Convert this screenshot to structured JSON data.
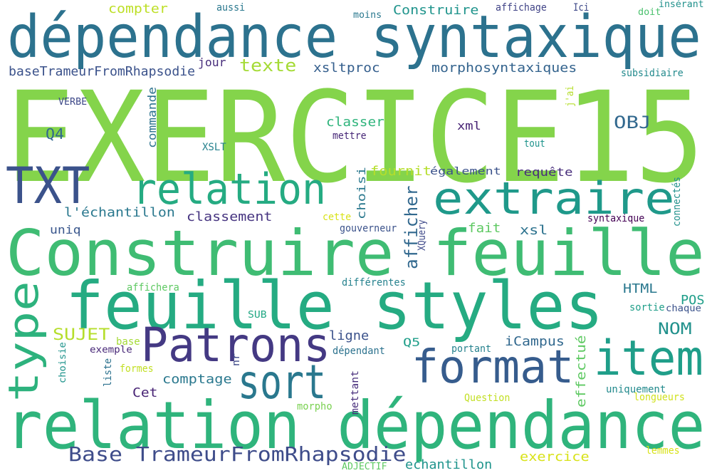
{
  "words": [
    {
      "id": "exercice15",
      "text": "EXERCICE15",
      "color": "#84d44b"
    },
    {
      "id": "dependance-syntaxique",
      "text": "dépendance syntaxique",
      "color": "#2c728e"
    },
    {
      "id": "construire-feuille",
      "text": "Construire feuille",
      "color": "#3fbc73"
    },
    {
      "id": "feuille-styles",
      "text": "feuille styles",
      "color": "#25ab82"
    },
    {
      "id": "relation-dependance",
      "text": "relation dépendance",
      "color": "#2fb47c"
    },
    {
      "id": "txt",
      "text": "TXT",
      "color": "#3b528b"
    },
    {
      "id": "relation",
      "text": "relation",
      "color": "#25ab82"
    },
    {
      "id": "extraire",
      "text": "extraire",
      "color": "#1f998a"
    },
    {
      "id": "patrons",
      "text": "Patrons",
      "color": "#443983"
    },
    {
      "id": "sort",
      "text": "sort",
      "color": "#2a788e"
    },
    {
      "id": "format",
      "text": "format",
      "color": "#365c8d"
    },
    {
      "id": "item",
      "text": "item",
      "color": "#1f9e89"
    },
    {
      "id": "type",
      "text": "type",
      "color": "#2db27d"
    },
    {
      "id": "base-trameur",
      "text": "Base TrameurFromRhapsodie",
      "color": "#3e4c8a"
    },
    {
      "id": "compter",
      "text": "compter",
      "color": "#bddf26"
    },
    {
      "id": "aussi",
      "text": "aussi",
      "color": "#2a788e"
    },
    {
      "id": "moins",
      "text": "moins",
      "color": "#2a788e"
    },
    {
      "id": "construire",
      "text": "Construire",
      "color": "#1f948c"
    },
    {
      "id": "affichage",
      "text": "affichage",
      "color": "#414487"
    },
    {
      "id": "ici",
      "text": "Ici",
      "color": "#3e4989"
    },
    {
      "id": "doit",
      "text": "doit",
      "color": "#4ac16d"
    },
    {
      "id": "inserant",
      "text": "insérant",
      "color": "#21918c"
    },
    {
      "id": "basetrameur",
      "text": "baseTrameurFromRhapsodie",
      "color": "#3b528b"
    },
    {
      "id": "jour",
      "text": "jour",
      "color": "#472d7b"
    },
    {
      "id": "texte",
      "text": "texte",
      "color": "#a5db36"
    },
    {
      "id": "xsltproc",
      "text": "xsltproc",
      "color": "#355f8d"
    },
    {
      "id": "morphosyntaxiques",
      "text": "morphosyntaxiques",
      "color": "#33638d"
    },
    {
      "id": "subsidiaire",
      "text": "subsidiaire",
      "color": "#238a8d"
    },
    {
      "id": "verbe",
      "text": "VERBE",
      "color": "#3e4989"
    },
    {
      "id": "commande",
      "text": "commande",
      "color": "#2c728e"
    },
    {
      "id": "jai",
      "text": "j'ai",
      "color": "#b5de2b"
    },
    {
      "id": "q4",
      "text": "Q4",
      "color": "#31688e"
    },
    {
      "id": "classer",
      "text": "classer",
      "color": "#2fb47c"
    },
    {
      "id": "xml",
      "text": "xml",
      "color": "#482475"
    },
    {
      "id": "obj",
      "text": "OBJ",
      "color": "#31688e"
    },
    {
      "id": "mettre",
      "text": "mettre",
      "color": "#482878"
    },
    {
      "id": "xslt",
      "text": "XSLT",
      "color": "#26828e"
    },
    {
      "id": "tout",
      "text": "tout",
      "color": "#1f948c"
    },
    {
      "id": "fournit",
      "text": "fournit",
      "color": "#b5de2b"
    },
    {
      "id": "choisi",
      "text": "choisi",
      "color": "#2a788e"
    },
    {
      "id": "egalement",
      "text": "également",
      "color": "#3b528b"
    },
    {
      "id": "requete",
      "text": "requête",
      "color": "#472d7b"
    },
    {
      "id": "connectes",
      "text": "connectés",
      "color": "#21918c"
    },
    {
      "id": "lechantillon",
      "text": "l'échantillon",
      "color": "#2a788e"
    },
    {
      "id": "classement",
      "text": "classement",
      "color": "#463480"
    },
    {
      "id": "afficher",
      "text": "afficher",
      "color": "#31688e"
    },
    {
      "id": "cette",
      "text": "cette",
      "color": "#d8e219"
    },
    {
      "id": "xquery",
      "text": "XQuery",
      "color": "#3e4989"
    },
    {
      "id": "gouverneur",
      "text": "gouverneur",
      "color": "#3b528b"
    },
    {
      "id": "syntaxique",
      "text": "syntaxique",
      "color": "#440154"
    },
    {
      "id": "uniq",
      "text": "uniq",
      "color": "#39568c"
    },
    {
      "id": "fait",
      "text": "fait",
      "color": "#5ec962"
    },
    {
      "id": "xsl",
      "text": "xsl",
      "color": "#2c728e"
    },
    {
      "id": "differentes",
      "text": "différentes",
      "color": "#26828e"
    },
    {
      "id": "html",
      "text": "HTML",
      "color": "#2a788e"
    },
    {
      "id": "pos",
      "text": "POS",
      "color": "#1f9e89"
    },
    {
      "id": "affichera",
      "text": "affichera",
      "color": "#5ec962"
    },
    {
      "id": "sub",
      "text": "SUB",
      "color": "#22a884"
    },
    {
      "id": "sortie",
      "text": "sortie",
      "color": "#1f9e89"
    },
    {
      "id": "chaque",
      "text": "chaque",
      "color": "#3b528b"
    },
    {
      "id": "nom",
      "text": "NOM",
      "color": "#21918c"
    },
    {
      "id": "sujet",
      "text": "SUJET",
      "color": "#b5de2b"
    },
    {
      "id": "ligne",
      "text": "ligne",
      "color": "#3b528b"
    },
    {
      "id": "q5",
      "text": "Q5",
      "color": "#1f9e89"
    },
    {
      "id": "icampus",
      "text": "iCampus",
      "color": "#31688e"
    },
    {
      "id": "effectue",
      "text": "effectué",
      "color": "#5ec962"
    },
    {
      "id": "choisie",
      "text": "choisie",
      "color": "#1f948c"
    },
    {
      "id": "exemple",
      "text": "exemple",
      "color": "#482878"
    },
    {
      "id": "base",
      "text": "base",
      "color": "#a5db36"
    },
    {
      "id": "dependant",
      "text": "dépendant",
      "color": "#2c728e"
    },
    {
      "id": "portant",
      "text": "portant",
      "color": "#26828e"
    },
    {
      "id": "nr",
      "text": "nr",
      "color": "#3e4989"
    },
    {
      "id": "liste",
      "text": "liste",
      "color": "#2c728e"
    },
    {
      "id": "formes",
      "text": "formes",
      "color": "#c2df23"
    },
    {
      "id": "comptage",
      "text": "comptage",
      "color": "#2a788e"
    },
    {
      "id": "cet",
      "text": "Cet",
      "color": "#482475"
    },
    {
      "id": "uniquement",
      "text": "uniquement",
      "color": "#238a8d"
    },
    {
      "id": "longueurs",
      "text": "longueurs",
      "color": "#d0e11c"
    },
    {
      "id": "question",
      "text": "Question",
      "color": "#c2df23"
    },
    {
      "id": "mettant",
      "text": "mettant",
      "color": "#472d7b"
    },
    {
      "id": "morpho",
      "text": "morpho",
      "color": "#7ad151"
    },
    {
      "id": "exercice",
      "text": "exercice",
      "color": "#d8e219"
    },
    {
      "id": "lemmes",
      "text": "lemmes",
      "color": "#d8e219"
    },
    {
      "id": "adjectif",
      "text": "ADJECTIF",
      "color": "#5ec962"
    },
    {
      "id": "echantillon",
      "text": "echantillon",
      "color": "#1f948c"
    }
  ]
}
